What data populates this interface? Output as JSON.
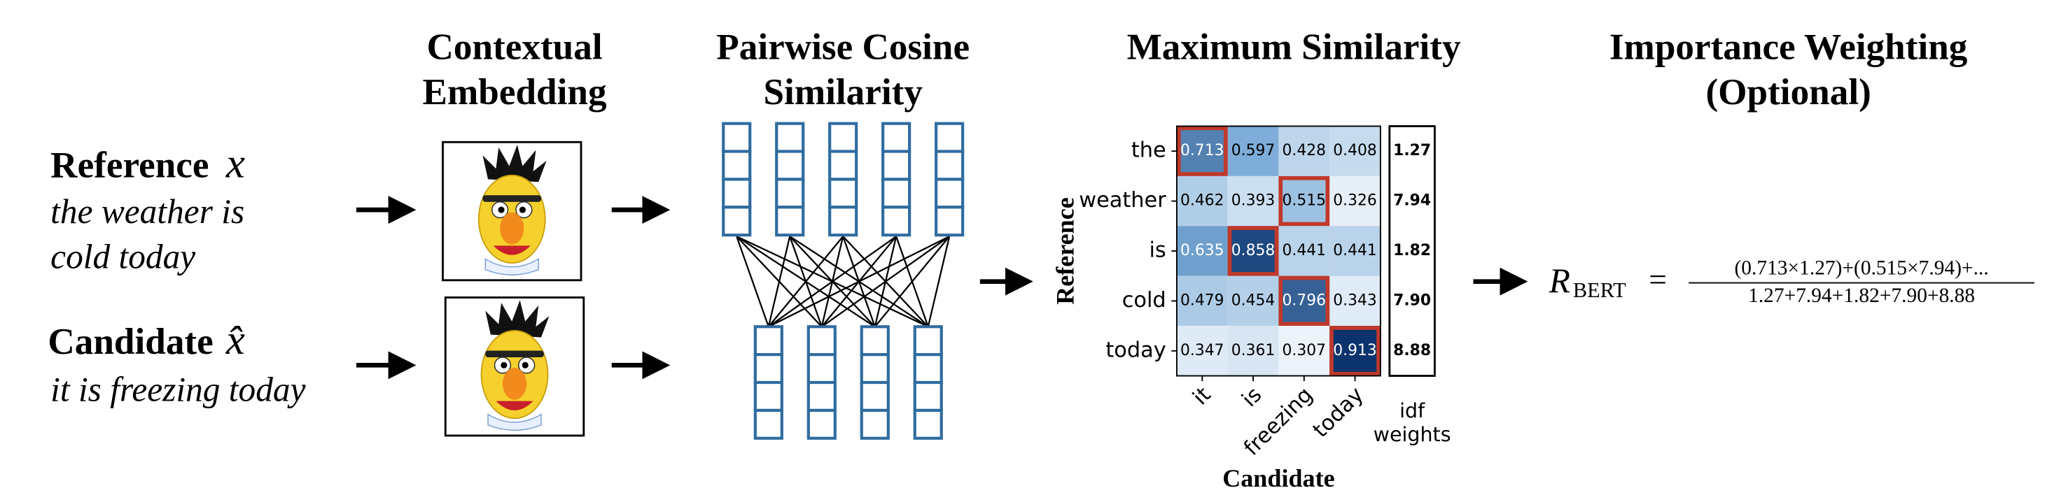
{
  "headings": [
    {
      "lines": [
        "Contextual",
        "Embedding"
      ]
    },
    {
      "lines": [
        "Pairwise Cosine",
        "Similarity"
      ]
    },
    {
      "lines": [
        "Maximum Similarity"
      ]
    },
    {
      "lines": [
        "Importance Weighting",
        "(Optional)"
      ]
    }
  ],
  "reference": {
    "label": "Reference",
    "symbol": "x",
    "text": [
      "the weather is",
      "cold today"
    ]
  },
  "candidate": {
    "label": "Candidate",
    "symbol": "x̂",
    "text": [
      "it is freezing today"
    ]
  },
  "heatmap": {
    "rows": [
      "the",
      "weather",
      "is",
      "cold",
      "today"
    ],
    "columns": [
      "it",
      "is",
      "freezing",
      "today"
    ],
    "values": [
      [
        0.713,
        0.597,
        0.428,
        0.408
      ],
      [
        0.462,
        0.393,
        0.515,
        0.326
      ],
      [
        0.635,
        0.858,
        0.441,
        0.441
      ],
      [
        0.479,
        0.454,
        0.796,
        0.343
      ],
      [
        0.347,
        0.361,
        0.307,
        0.913
      ]
    ],
    "x_label": "Candidate",
    "y_label": "Reference",
    "idf_weights": [
      "1.27",
      "7.94",
      "1.82",
      "7.90",
      "8.88"
    ],
    "idf_label": [
      "idf",
      "weights"
    ]
  },
  "formula": {
    "symbol": "R",
    "subscript": "BERT",
    "equals": "=",
    "numerator": "(0.713×1.27)+(0.515×7.94)+...",
    "denominator": "1.27+7.94+1.82+7.90+8.88"
  }
}
